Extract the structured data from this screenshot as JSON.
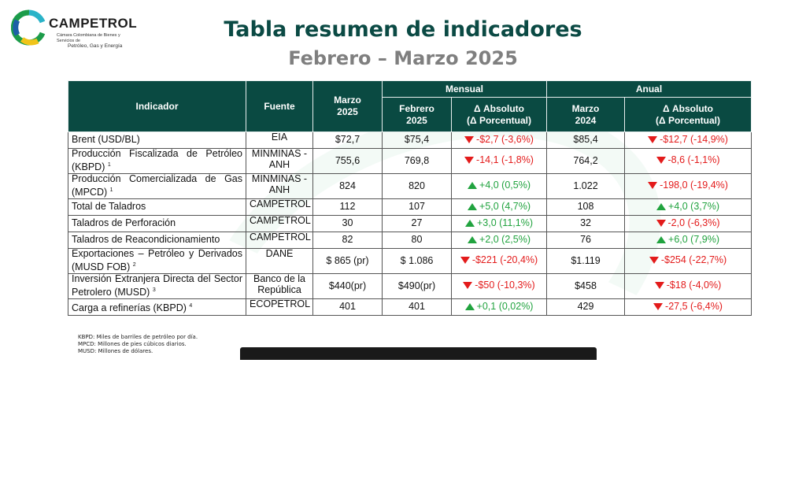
{
  "logo": {
    "brand": "CAMPETROL",
    "tagline": "Cámara Colombiana de Bienes y Servicios de",
    "tagline2": "Petróleo, Gas y Energía"
  },
  "title": "Tabla resumen de indicadores",
  "subtitle": "Febrero – Marzo 2025",
  "table": {
    "headers": {
      "indicador": "Indicador",
      "fuente": "Fuente",
      "marzo2025": [
        "Marzo",
        "2025"
      ],
      "mensual": "Mensual",
      "anual": "Anual",
      "febrero2025": [
        "Febrero",
        "2025"
      ],
      "delta_mensual": [
        "Δ Absoluto",
        "(Δ Porcentual)"
      ],
      "marzo2024": [
        "Marzo",
        "2024"
      ],
      "delta_anual": [
        "Δ Absoluto",
        "(Δ Porcentual)"
      ]
    },
    "rows": [
      {
        "name": "Brent (USD/BL)",
        "note": "",
        "fuente": "EIA",
        "marzo2025": "$72,7",
        "febrero2025": "$75,4",
        "delta_m": "-$2,7 (-3,6%)",
        "dir_m": "down",
        "marzo2024": "$85,4",
        "delta_a": "-$12,7 (-14,9%)",
        "dir_a": "down"
      },
      {
        "name": "Producción Fiscalizada de Petróleo (KBPD)",
        "note": "1",
        "fuente": "MINMINAS - ANH",
        "marzo2025": "755,6",
        "febrero2025": "769,8",
        "delta_m": "-14,1 (-1,8%)",
        "dir_m": "down",
        "marzo2024": "764,2",
        "delta_a": "-8,6 (-1,1%)",
        "dir_a": "down"
      },
      {
        "name": "Producción Comercializada de Gas (MPCD)",
        "note": "1",
        "fuente": "MINMINAS - ANH",
        "marzo2025": "824",
        "febrero2025": "820",
        "delta_m": "+4,0 (0,5%)",
        "dir_m": "up",
        "marzo2024": "1.022",
        "delta_a": "-198,0 (-19,4%)",
        "dir_a": "down"
      },
      {
        "name": "Total de Taladros",
        "note": "",
        "fuente": "CAMPETROL",
        "marzo2025": "112",
        "febrero2025": "107",
        "delta_m": "+5,0 (4,7%)",
        "dir_m": "up",
        "marzo2024": "108",
        "delta_a": "+4,0 (3,7%)",
        "dir_a": "up"
      },
      {
        "name": "Taladros de Perforación",
        "note": "",
        "fuente": "CAMPETROL",
        "marzo2025": "30",
        "febrero2025": "27",
        "delta_m": "+3,0 (11,1%)",
        "dir_m": "up",
        "marzo2024": "32",
        "delta_a": "-2,0 (-6,3%)",
        "dir_a": "down"
      },
      {
        "name": "Taladros de Reacondicionamiento",
        "note": "",
        "fuente": "CAMPETROL",
        "marzo2025": "82",
        "febrero2025": "80",
        "delta_m": "+2,0 (2,5%)",
        "dir_m": "up",
        "marzo2024": "76",
        "delta_a": "+6,0 (7,9%)",
        "dir_a": "up"
      },
      {
        "name": "Exportaciones – Petróleo y Derivados (MUSD FOB)",
        "note": "2",
        "fuente": "DANE",
        "marzo2025": "$ 865 (pr)",
        "febrero2025": "$ 1.086",
        "delta_m": "-$221 (-20,4%)",
        "dir_m": "down",
        "marzo2024": "$1.119",
        "delta_a": "-$254 (-22,7%)",
        "dir_a": "down"
      },
      {
        "name": "Inversión Extranjera Directa del Sector Petrolero (MUSD)",
        "note": "3",
        "fuente": "Banco de la República",
        "marzo2025": "$440(pr)",
        "febrero2025": "$490(pr)",
        "delta_m": "-$50 (-10,3%)",
        "dir_m": "down",
        "marzo2024": "$458",
        "delta_a": "-$18 (-4,0%)",
        "dir_a": "down"
      },
      {
        "name": "Carga a refinerías (KBPD)",
        "note": "4",
        "fuente": "ECOPETROL",
        "marzo2025": "401",
        "febrero2025": "401",
        "delta_m": "+0,1 (0,02%)",
        "dir_m": "up",
        "marzo2024": "429",
        "delta_a": "-27,5 (-6,4%)",
        "dir_a": "down"
      }
    ]
  },
  "notes": [
    "KBPD: Miles de barriles de petróleo por día.",
    "MPCD: Millones de pies cúbicos diarios.",
    "MUSD: Millones de dólares."
  ],
  "colors": {
    "header_bg": "#0a4a42",
    "title": "#0b4a44",
    "subtitle": "#7f7f7f",
    "negative": "#e31b1b",
    "positive": "#21a33f"
  }
}
